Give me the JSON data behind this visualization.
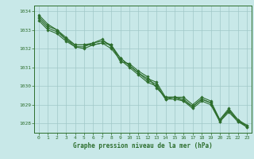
{
  "background_color": "#c8e8e8",
  "grid_color": "#a0c8c8",
  "line_color": "#2d6e2d",
  "marker_color": "#2d6e2d",
  "title": "Graphe pression niveau de la mer (hPa)",
  "title_color": "#2d6e2d",
  "xlim": [
    -0.5,
    23.5
  ],
  "ylim": [
    1027.5,
    1034.3
  ],
  "xticks": [
    0,
    1,
    2,
    3,
    4,
    5,
    6,
    7,
    8,
    9,
    10,
    11,
    12,
    13,
    14,
    15,
    16,
    17,
    18,
    19,
    20,
    21,
    22,
    23
  ],
  "yticks": [
    1028,
    1029,
    1030,
    1031,
    1032,
    1033,
    1034
  ],
  "series": [
    [
      1033.8,
      1033.3,
      1033.0,
      1032.6,
      1032.2,
      1032.2,
      1032.2,
      1032.3,
      1032.2,
      1031.3,
      1031.2,
      1030.8,
      1030.5,
      1029.9,
      1029.4,
      1029.4,
      1029.4,
      1029.0,
      1029.4,
      1029.2,
      1028.2,
      1028.8,
      1028.2,
      1027.8
    ],
    [
      1033.7,
      1033.2,
      1033.0,
      1032.5,
      1032.2,
      1032.2,
      1032.3,
      1032.4,
      1032.2,
      1031.5,
      1031.1,
      1030.7,
      1030.4,
      1030.2,
      1029.4,
      1029.4,
      1029.3,
      1028.9,
      1029.3,
      1029.1,
      1028.2,
      1028.7,
      1028.2,
      1027.9
    ],
    [
      1033.6,
      1033.1,
      1032.9,
      1032.5,
      1032.1,
      1032.1,
      1032.3,
      1032.5,
      1032.1,
      1031.5,
      1031.1,
      1030.7,
      1030.3,
      1030.1,
      1029.3,
      1029.4,
      1029.2,
      1028.9,
      1029.3,
      1029.1,
      1028.1,
      1028.7,
      1028.1,
      1027.9
    ],
    [
      1033.5,
      1033.0,
      1032.8,
      1032.4,
      1032.1,
      1032.0,
      1032.2,
      1032.3,
      1032.0,
      1031.4,
      1031.0,
      1030.6,
      1030.2,
      1030.0,
      1029.3,
      1029.3,
      1029.2,
      1028.8,
      1029.2,
      1029.0,
      1028.1,
      1028.6,
      1028.1,
      1027.8
    ]
  ]
}
